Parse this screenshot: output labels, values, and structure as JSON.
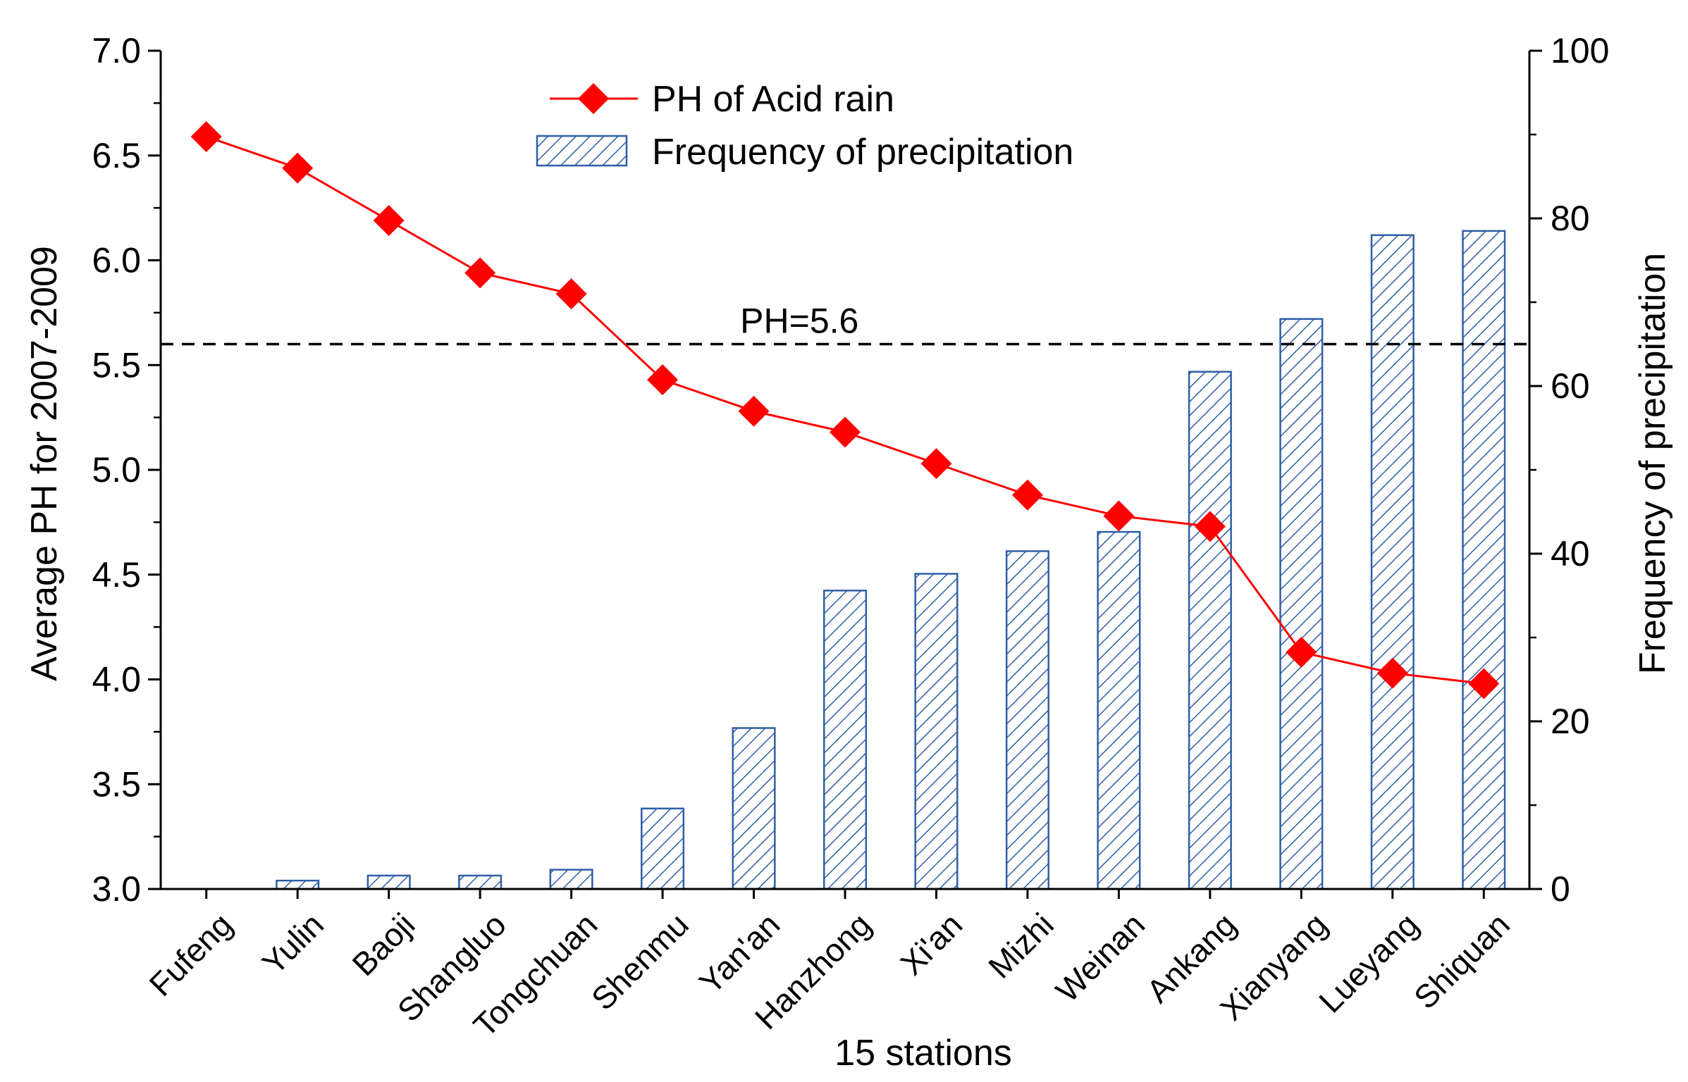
{
  "chart_data": {
    "type": "bar+line",
    "xlabel": "15 stations",
    "ylabel_left": "Average PH for 2007-2009",
    "ylabel_right": "Frequency of precipitation",
    "ylim_left": [
      3.0,
      7.0
    ],
    "ylim_right": [
      0,
      100
    ],
    "left_ticks": [
      "3.0",
      "3.5",
      "4.0",
      "4.5",
      "5.0",
      "5.5",
      "6.0",
      "6.5",
      "7.0"
    ],
    "right_ticks": [
      "0",
      "20",
      "40",
      "60",
      "80",
      "100"
    ],
    "categories": [
      "Fufeng",
      "Yulin",
      "Baoji",
      "Shangluo",
      "Tongchuan",
      "Shenmu",
      "Yan'an",
      "Hanzhong",
      "Xi'an",
      "Mizhi",
      "Weinan",
      "Ankang",
      "Xianyang",
      "Lueyang",
      "Shiquan"
    ],
    "series": [
      {
        "name": "PH of Acid rain",
        "type": "line",
        "axis": "left",
        "color": "#ff0000",
        "marker": "diamond",
        "values": [
          6.59,
          6.44,
          6.19,
          5.94,
          5.84,
          5.43,
          5.28,
          5.18,
          5.03,
          4.88,
          4.78,
          4.73,
          4.13,
          4.03,
          3.98
        ]
      },
      {
        "name": "Frequency of precipitation",
        "type": "bar",
        "axis": "right",
        "color": "#2f5fa5",
        "pattern": "diagonal-hatch",
        "values": [
          0,
          1,
          1.6,
          1.6,
          2.3,
          9.6,
          19.2,
          35.6,
          37.6,
          40.3,
          42.6,
          61.7,
          68.0,
          78.0,
          78.5
        ]
      }
    ],
    "reference_line": {
      "value": 5.6,
      "axis": "left",
      "label": "PH=5.6",
      "style": "dashed"
    },
    "legend": {
      "position": "top-center"
    }
  }
}
